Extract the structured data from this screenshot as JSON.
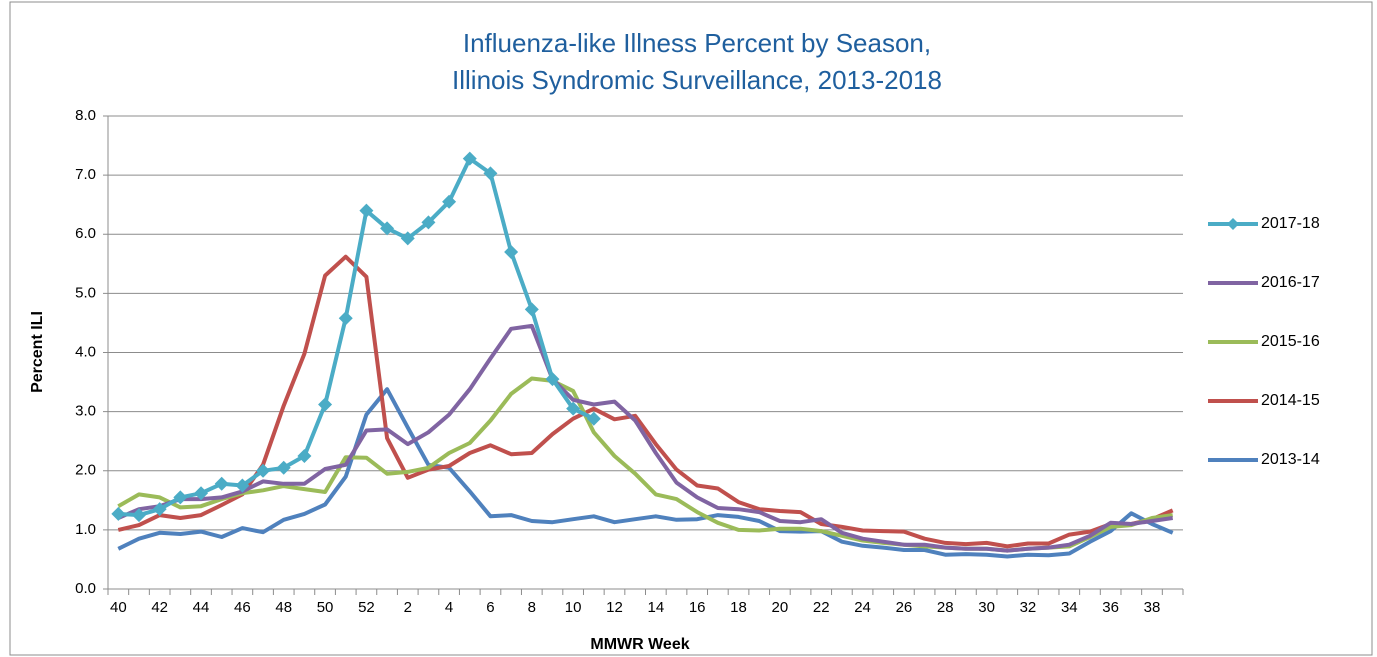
{
  "chart_data": {
    "type": "line",
    "title": [
      "Influenza-like Illness Percent by Season,",
      "Illinois Syndromic Surveillance, 2013-2018"
    ],
    "title_color": "#1f5f9e",
    "xlabel": "MMWR Week",
    "ylabel": "Percent ILI",
    "categories": [
      40,
      null,
      42,
      null,
      44,
      null,
      46,
      null,
      48,
      null,
      50,
      null,
      52,
      null,
      2,
      null,
      4,
      null,
      6,
      null,
      8,
      null,
      10,
      null,
      12,
      null,
      14,
      null,
      16,
      null,
      18,
      null,
      20,
      null,
      22,
      null,
      24,
      null,
      26,
      null,
      28,
      null,
      30,
      null,
      32,
      null,
      34,
      null,
      36,
      null,
      38,
      null
    ],
    "ylim": [
      0,
      8
    ],
    "yticks": [
      {
        "value": 0,
        "label": "0.0"
      },
      {
        "value": 1,
        "label": "1.0"
      },
      {
        "value": 2,
        "label": "2.0"
      },
      {
        "value": 3,
        "label": "3.0"
      },
      {
        "value": 4,
        "label": "4.0"
      },
      {
        "value": 5,
        "label": "5.0"
      },
      {
        "value": 6,
        "label": "6.0"
      },
      {
        "value": 7,
        "label": "7.0"
      },
      {
        "value": 8,
        "label": "8.0"
      }
    ],
    "grid": true,
    "legend": "right",
    "series": [
      {
        "name": "2017-18",
        "color": "#4bacc6",
        "marker": "diamond",
        "values": [
          1.27,
          1.25,
          1.35,
          1.55,
          1.62,
          1.78,
          1.75,
          2.0,
          2.05,
          2.25,
          3.12,
          4.58,
          6.4,
          6.1,
          5.93,
          6.2,
          6.55,
          7.28,
          7.03,
          5.7,
          4.73,
          3.55,
          3.05,
          2.88,
          null,
          null,
          null,
          null,
          null,
          null,
          null,
          null,
          null,
          null,
          null,
          null,
          null,
          null,
          null,
          null,
          null,
          null,
          null,
          null,
          null,
          null,
          null,
          null,
          null,
          null,
          null,
          null
        ]
      },
      {
        "name": "2016-17",
        "color": "#8064a2",
        "values": [
          1.2,
          1.35,
          1.4,
          1.52,
          1.52,
          1.55,
          1.65,
          1.82,
          1.78,
          1.78,
          2.03,
          2.1,
          2.68,
          2.7,
          2.45,
          2.65,
          2.95,
          3.38,
          3.9,
          4.4,
          4.45,
          3.55,
          3.2,
          3.12,
          3.17,
          2.85,
          2.3,
          1.8,
          1.55,
          1.37,
          1.35,
          1.3,
          1.15,
          1.13,
          1.18,
          0.95,
          0.85,
          0.8,
          0.75,
          0.75,
          0.7,
          0.68,
          0.68,
          0.65,
          0.68,
          0.7,
          0.75,
          0.9,
          1.12,
          1.1,
          1.15,
          1.2
        ]
      },
      {
        "name": "2015-16",
        "color": "#9bbb59",
        "values": [
          1.4,
          1.6,
          1.55,
          1.38,
          1.4,
          1.52,
          1.62,
          1.67,
          1.74,
          1.69,
          1.64,
          2.23,
          2.22,
          1.95,
          1.98,
          2.05,
          2.3,
          2.47,
          2.85,
          3.3,
          3.56,
          3.52,
          3.35,
          2.65,
          2.25,
          1.95,
          1.6,
          1.52,
          1.3,
          1.12,
          1.0,
          0.99,
          1.02,
          1.02,
          0.98,
          0.9,
          0.82,
          0.78,
          0.75,
          0.72,
          0.7,
          0.68,
          0.68,
          0.65,
          0.68,
          0.7,
          0.72,
          0.88,
          1.05,
          1.08,
          1.2,
          1.25
        ]
      },
      {
        "name": "2014-15",
        "color": "#c0504d",
        "values": [
          1.0,
          1.08,
          1.25,
          1.2,
          1.25,
          1.42,
          1.6,
          2.1,
          3.1,
          3.98,
          5.3,
          5.62,
          5.28,
          2.55,
          1.88,
          2.02,
          2.08,
          2.3,
          2.43,
          2.28,
          2.3,
          2.62,
          2.88,
          3.05,
          2.87,
          2.93,
          2.45,
          2.02,
          1.75,
          1.7,
          1.47,
          1.35,
          1.32,
          1.3,
          1.1,
          1.05,
          0.99,
          0.98,
          0.97,
          0.85,
          0.78,
          0.76,
          0.78,
          0.72,
          0.77,
          0.77,
          0.92,
          0.97,
          1.1,
          1.1,
          1.18,
          1.33
        ]
      },
      {
        "name": "2013-14",
        "color": "#4f81bd",
        "values": [
          0.68,
          0.85,
          0.95,
          0.93,
          0.97,
          0.88,
          1.03,
          0.96,
          1.17,
          1.27,
          1.43,
          1.9,
          2.95,
          3.38,
          2.73,
          2.1,
          2.05,
          1.65,
          1.23,
          1.25,
          1.15,
          1.13,
          1.18,
          1.23,
          1.13,
          1.18,
          1.23,
          1.17,
          1.18,
          1.25,
          1.22,
          1.15,
          0.98,
          0.97,
          0.98,
          0.8,
          0.73,
          0.7,
          0.66,
          0.66,
          0.58,
          0.59,
          0.58,
          0.55,
          0.58,
          0.57,
          0.6,
          0.8,
          0.98,
          1.28,
          1.1,
          0.95
        ]
      }
    ]
  }
}
